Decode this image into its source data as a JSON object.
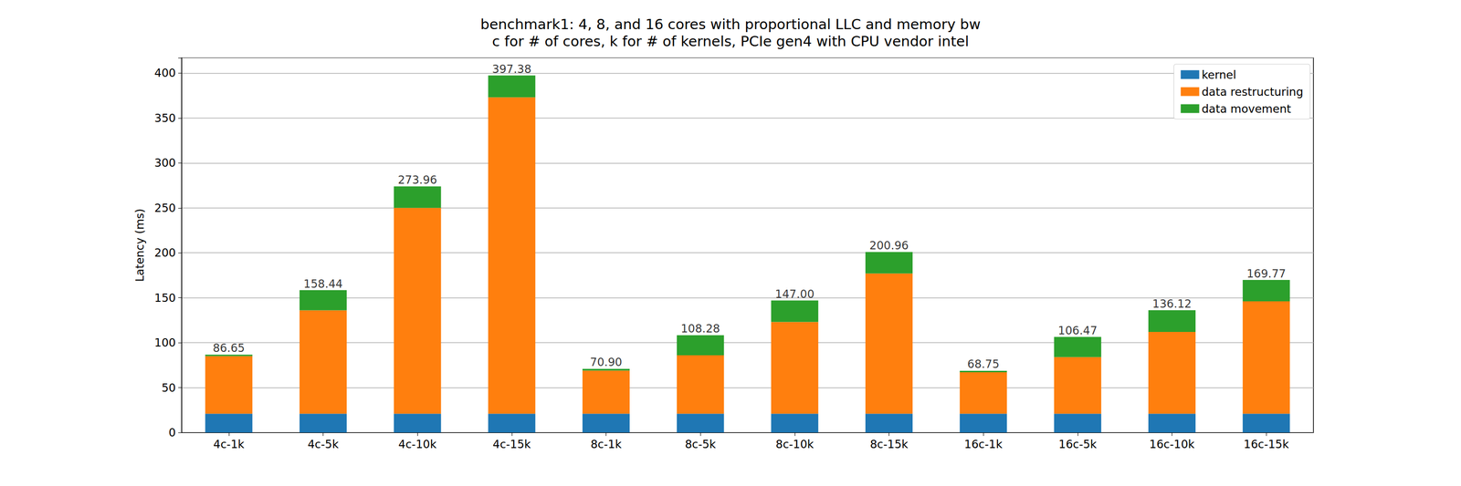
{
  "chart_data": {
    "type": "bar",
    "title": "benchmark1: 4, 8, and 16 cores with proportional LLC and memory bw",
    "subtitle": "c for # of cores, k for # of kernels, PCIe gen4 with CPU vendor intel",
    "y_label": "Latency (ms)",
    "categories": [
      "4c-1k",
      "4c-5k",
      "4c-10k",
      "4c-15k",
      "8c-1k",
      "8c-5k",
      "8c-10k",
      "8c-15k",
      "16c-1k",
      "16c-5k",
      "16c-10k",
      "16c-15k"
    ],
    "series": [
      {
        "name": "kernel",
        "color": "#1f77b4",
        "values": [
          21,
          21,
          21,
          21,
          21,
          21,
          21,
          21,
          21,
          21,
          21,
          21
        ]
      },
      {
        "name": "data restructuring",
        "color": "#ff7f0e",
        "values": [
          64,
          115,
          229,
          352,
          48,
          65,
          102,
          156,
          46,
          63,
          91,
          125
        ]
      },
      {
        "name": "data movement",
        "color": "#2ca02c",
        "values": [
          1.65,
          22.44,
          23.96,
          24.38,
          1.9,
          22.28,
          24,
          23.96,
          1.75,
          22.47,
          24.12,
          23.77
        ]
      }
    ],
    "totals": {
      "values": [
        86.65,
        158.44,
        273.96,
        397.38,
        70.9,
        108.28,
        147,
        200.96,
        68.75,
        106.47,
        136.12,
        169.77
      ],
      "value_labels": [
        "86.65",
        "158.44",
        "273.96",
        "397.38",
        "70.90",
        "108.28",
        "147.00",
        "200.96",
        "68.75",
        "106.47",
        "136.12",
        "169.77"
      ]
    },
    "stacked": true,
    "ylim": [
      0,
      417
    ],
    "yticks": [
      0,
      50,
      100,
      150,
      200,
      250,
      300,
      350,
      400
    ],
    "grid": true,
    "legend": "upper right"
  }
}
